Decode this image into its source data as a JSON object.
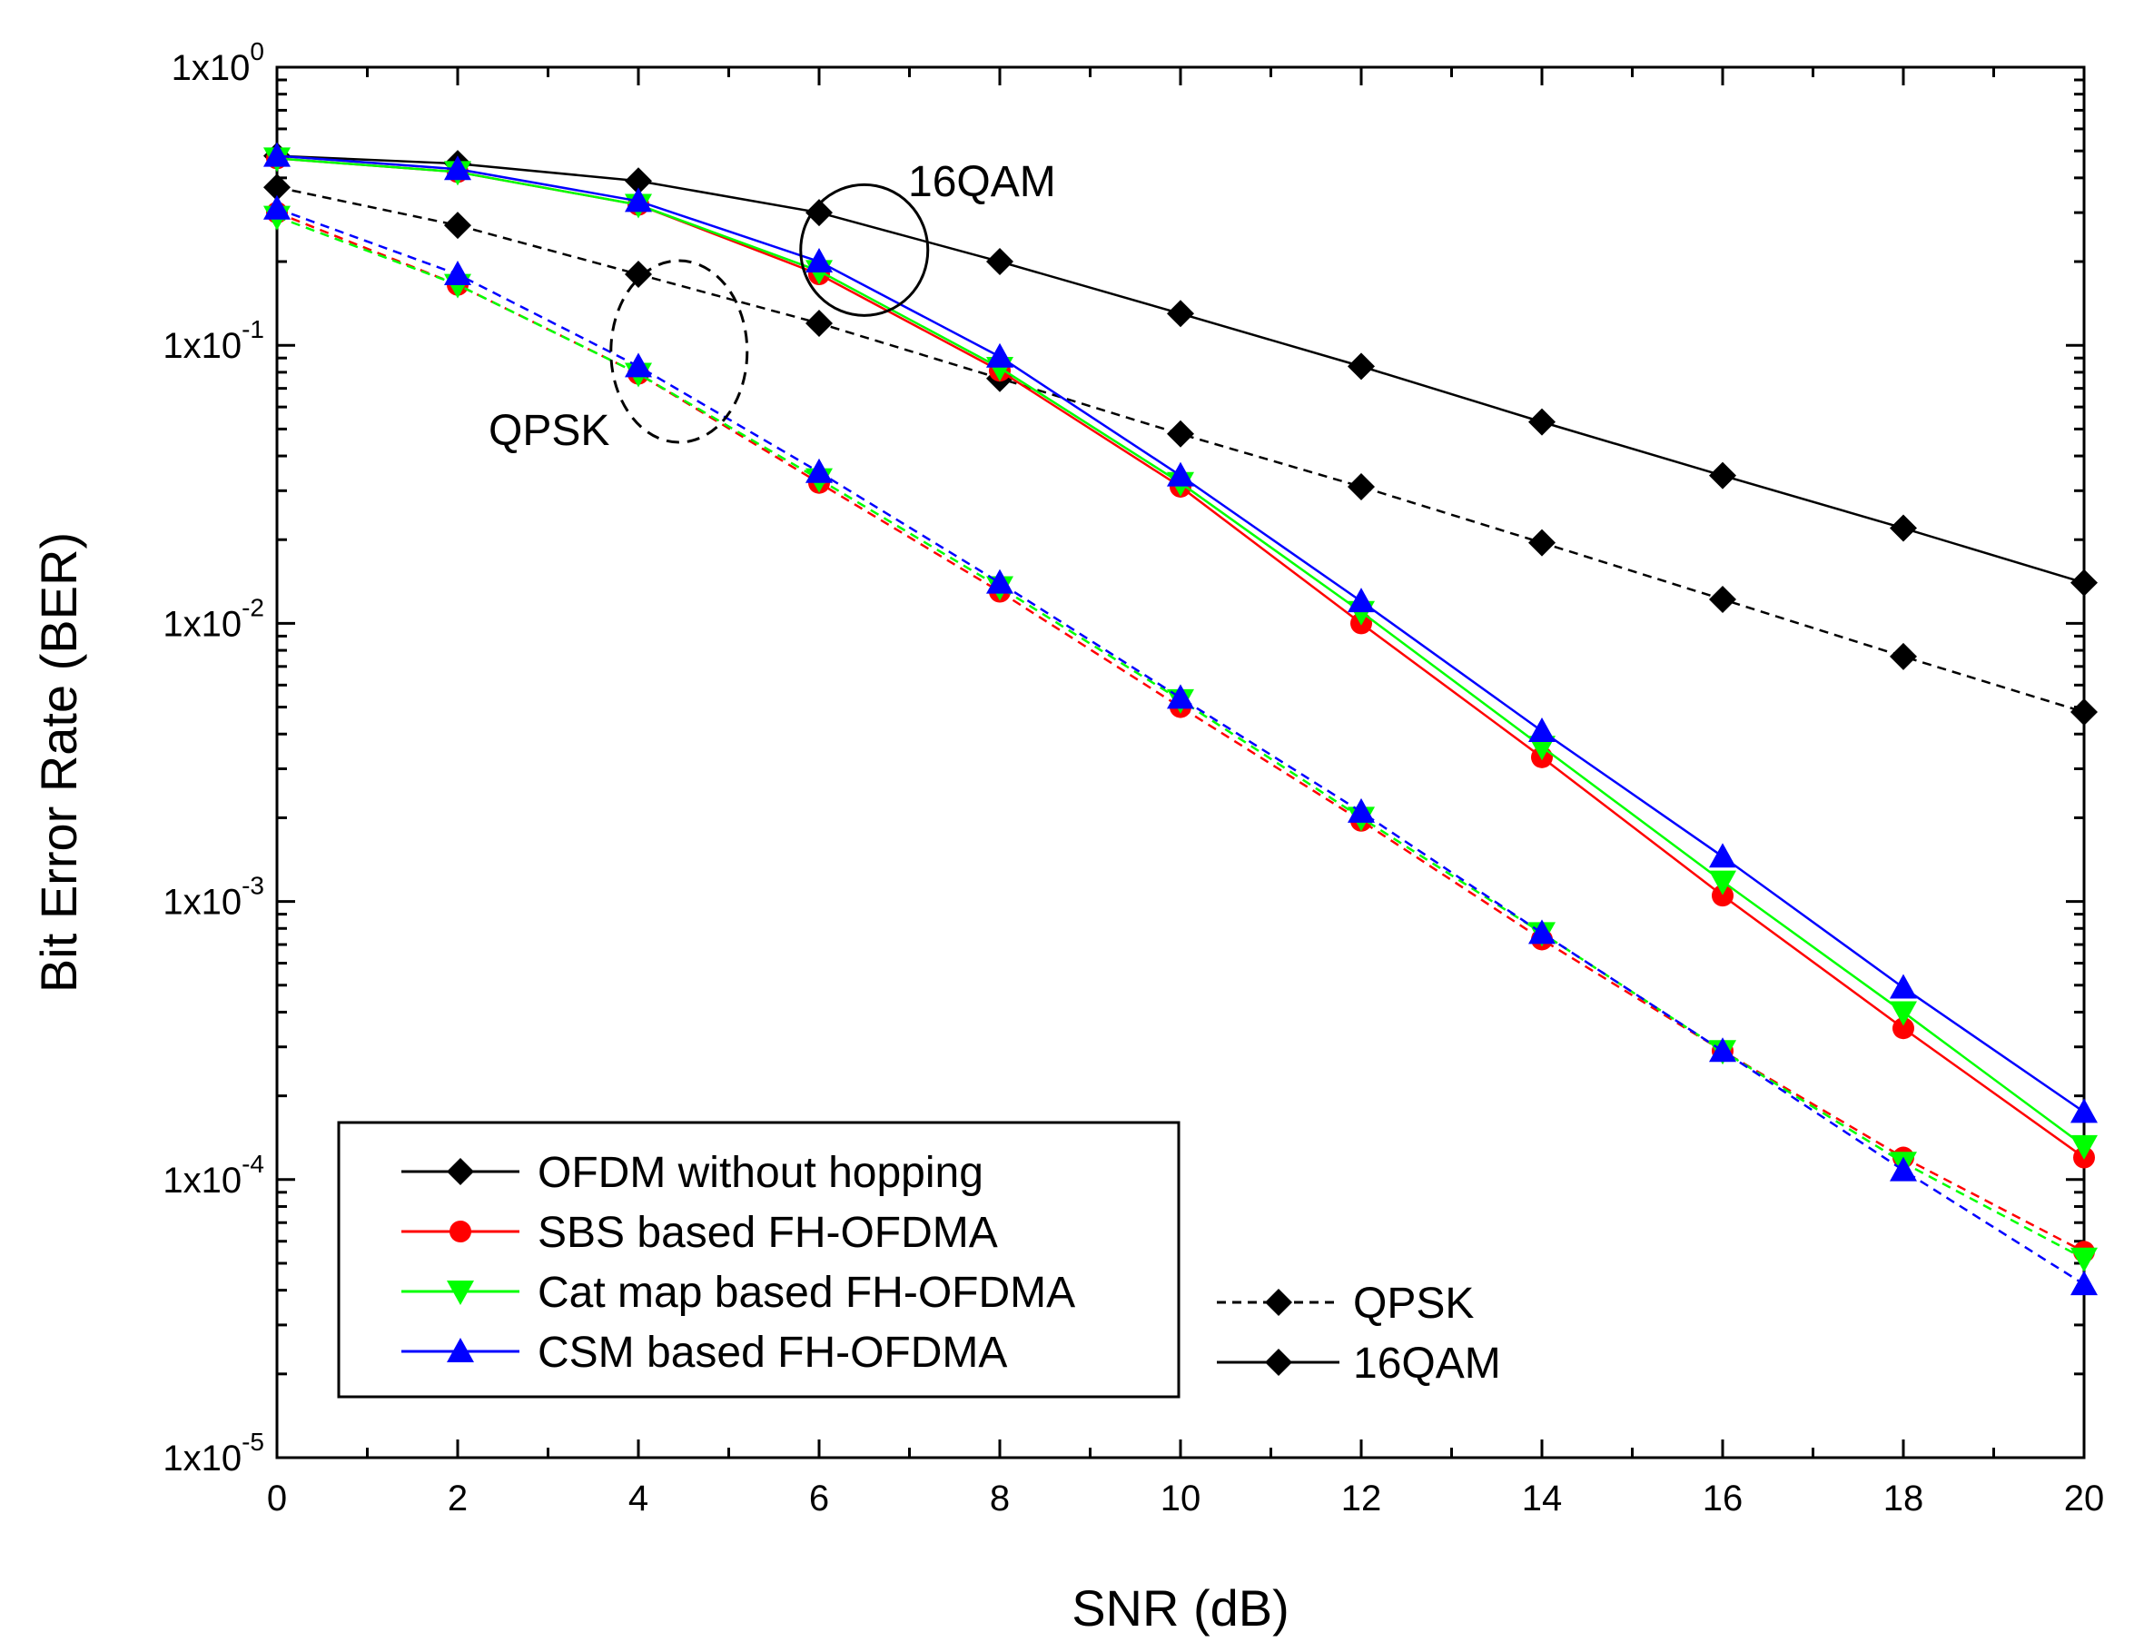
{
  "chart_data": {
    "type": "line",
    "title": "",
    "xlabel": "SNR (dB)",
    "ylabel": "Bit Error Rate (BER)",
    "xlim": [
      0,
      20
    ],
    "ylim_exp": [
      -5,
      0
    ],
    "yscale": "log",
    "x_ticks": [
      "0",
      "2",
      "4",
      "6",
      "8",
      "10",
      "12",
      "14",
      "16",
      "18",
      "20"
    ],
    "y_ticks": [
      {
        "base": "1x10",
        "exp": "0",
        "value": 1
      },
      {
        "base": "1x10",
        "exp": "-1",
        "value": 0.1
      },
      {
        "base": "1x10",
        "exp": "-2",
        "value": 0.01
      },
      {
        "base": "1x10",
        "exp": "-3",
        "value": 0.001
      },
      {
        "base": "1x10",
        "exp": "-4",
        "value": 0.0001
      },
      {
        "base": "1x10",
        "exp": "-5",
        "value": 1e-05
      }
    ],
    "x": [
      0,
      2,
      4,
      6,
      8,
      10,
      12,
      14,
      16,
      18,
      20
    ],
    "series": [
      {
        "name": "OFDM without hopping",
        "modulation": "16QAM",
        "color": "#000000",
        "marker": "diamond",
        "dash": "solid",
        "values": [
          0.48,
          0.45,
          0.39,
          0.3,
          0.2,
          0.13,
          0.084,
          0.053,
          0.034,
          0.022,
          0.014
        ]
      },
      {
        "name": "OFDM without hopping",
        "modulation": "QPSK",
        "color": "#000000",
        "marker": "diamond",
        "dash": "dashed",
        "values": [
          0.37,
          0.27,
          0.18,
          0.12,
          0.076,
          0.048,
          0.031,
          0.0195,
          0.0122,
          0.0076,
          0.0048
        ]
      },
      {
        "name": "SBS based FH-OFDMA",
        "modulation": "16QAM",
        "color": "#ff0000",
        "marker": "circle",
        "dash": "solid",
        "values": [
          0.47,
          0.42,
          0.32,
          0.18,
          0.081,
          0.031,
          0.01,
          0.0033,
          0.00105,
          0.00035,
          0.00012
        ]
      },
      {
        "name": "SBS based FH-OFDMA",
        "modulation": "QPSK",
        "color": "#ff0000",
        "marker": "circle",
        "dash": "dashed",
        "values": [
          0.3,
          0.165,
          0.079,
          0.032,
          0.013,
          0.005,
          0.00195,
          0.00073,
          0.00029,
          0.00012,
          5.5e-05
        ]
      },
      {
        "name": "Cat map based FH-OFDMA",
        "modulation": "16QAM",
        "color": "#00ff00",
        "marker": "triangle-down",
        "dash": "solid",
        "values": [
          0.47,
          0.42,
          0.32,
          0.185,
          0.083,
          0.032,
          0.011,
          0.0036,
          0.00118,
          0.0004,
          0.000132
        ]
      },
      {
        "name": "Cat map based FH-OFDMA",
        "modulation": "QPSK",
        "color": "#00ff00",
        "marker": "triangle-down",
        "dash": "dashed",
        "values": [
          0.29,
          0.165,
          0.079,
          0.033,
          0.0135,
          0.0053,
          0.002,
          0.00077,
          0.00029,
          0.000115,
          5.2e-05
        ]
      },
      {
        "name": "CSM based FH-OFDMA",
        "modulation": "16QAM",
        "color": "#0000ff",
        "marker": "triangle-up",
        "dash": "solid",
        "values": [
          0.48,
          0.43,
          0.33,
          0.2,
          0.091,
          0.034,
          0.012,
          0.0041,
          0.00145,
          0.00049,
          0.000175
        ]
      },
      {
        "name": "CSM based FH-OFDMA",
        "modulation": "QPSK",
        "color": "#0000ff",
        "marker": "triangle-up",
        "dash": "dashed",
        "values": [
          0.31,
          0.18,
          0.084,
          0.035,
          0.014,
          0.0054,
          0.0021,
          0.00077,
          0.00029,
          0.000108,
          4.2e-05
        ]
      }
    ],
    "legend": [
      {
        "label": "OFDM without hopping",
        "color": "#000000",
        "marker": "diamond"
      },
      {
        "label": "SBS based FH-OFDMA",
        "color": "#ff0000",
        "marker": "circle"
      },
      {
        "label": "Cat map based FH-OFDMA",
        "color": "#00ff00",
        "marker": "triangle-down"
      },
      {
        "label": "CSM based FH-OFDMA",
        "color": "#0000ff",
        "marker": "triangle-up"
      }
    ],
    "legend_placement": "bottom-left",
    "style_legend": [
      {
        "label": "QPSK",
        "dash": "dashed"
      },
      {
        "label": "16QAM",
        "dash": "solid"
      }
    ],
    "annotations": [
      {
        "text": "16QAM",
        "style": "solid ellipse"
      },
      {
        "text": "QPSK",
        "style": "dashed ellipse"
      }
    ],
    "grid": false
  }
}
